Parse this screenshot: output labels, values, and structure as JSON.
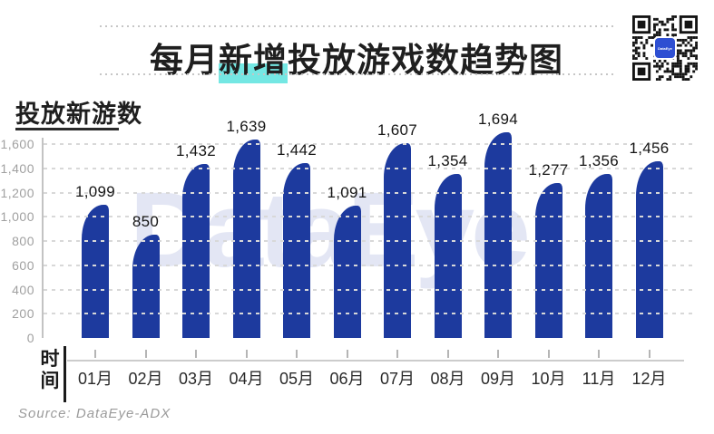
{
  "header": {
    "title_pre": "每月",
    "title_highlight": "新增",
    "title_post": "投放游戏数趋势图",
    "qr_label": "DataEye"
  },
  "watermark": {
    "text": "DataEye"
  },
  "source": "Source: DataEye-ADX",
  "chart_data": {
    "type": "bar",
    "title": "每月新增投放游戏数趋势图",
    "ylabel": "投放新游数",
    "xlabel": "时间",
    "categories": [
      "01月",
      "02月",
      "03月",
      "04月",
      "05月",
      "06月",
      "07月",
      "08月",
      "09月",
      "10月",
      "11月",
      "12月"
    ],
    "values": [
      1099,
      850,
      1432,
      1639,
      1442,
      1091,
      1607,
      1354,
      1694,
      1277,
      1356,
      1456
    ],
    "value_labels": [
      "1,099",
      "850",
      "1,432",
      "1,639",
      "1,442",
      "1,091",
      "1,607",
      "1,354",
      "1,694",
      "1,277",
      "1,356",
      "1,456"
    ],
    "y_ticks": [
      0,
      200,
      400,
      600,
      800,
      1000,
      1200,
      1400,
      1600
    ],
    "y_tick_labels": [
      "0",
      "200",
      "400",
      "600",
      "800",
      "1,000",
      "1,200",
      "1,400",
      "1,600"
    ],
    "ylim": [
      0,
      1750
    ],
    "grid": true,
    "legend": null,
    "bar_color": "#1d3a9e",
    "grid_color": "#d8d8d8",
    "highlight_color": "#74e7e3"
  }
}
